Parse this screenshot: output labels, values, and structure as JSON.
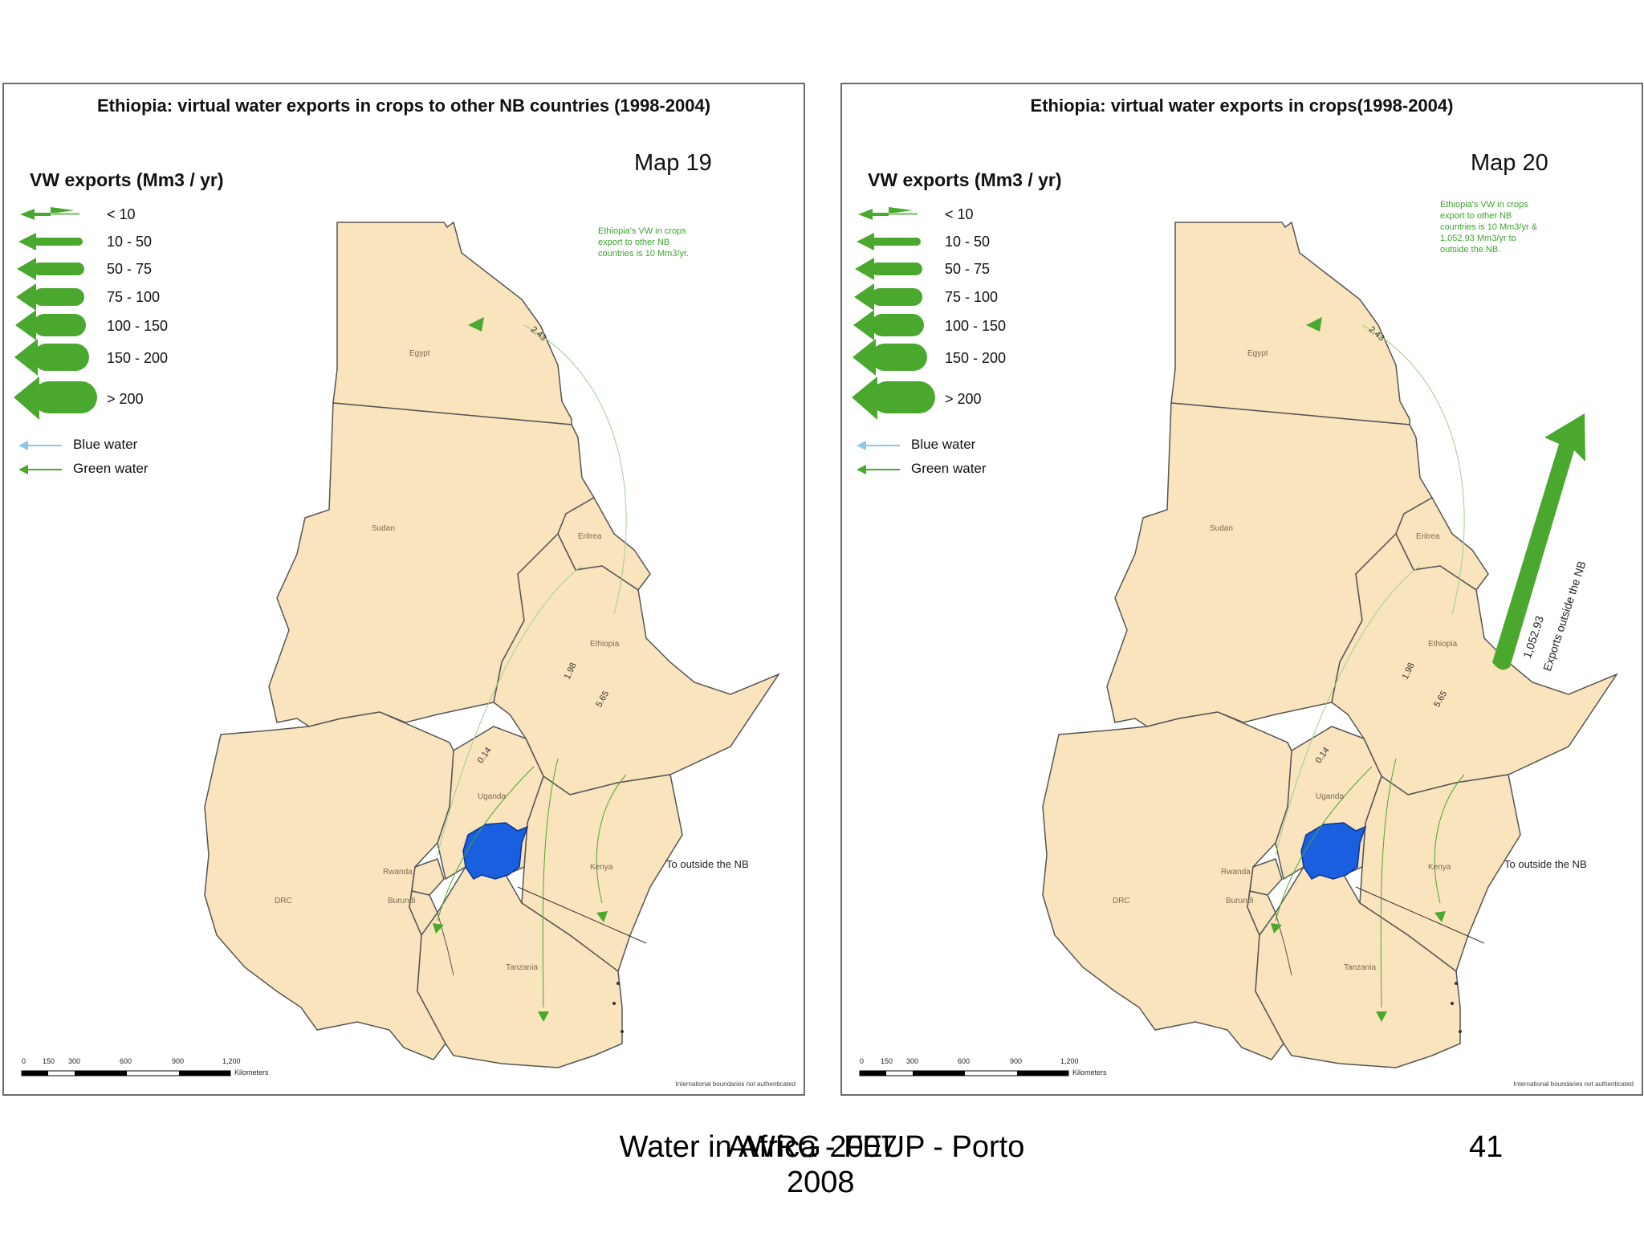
{
  "left_map": {
    "title": "Ethiopia: virtual water exports  in crops to other NB countries (1998-2004)",
    "map_number": "Map 19",
    "legend_title": "VW exports (Mm3 / yr)",
    "legend_classes": [
      "< 10",
      "10 - 50",
      "50 - 75",
      "75 - 100",
      "100 - 150",
      "150 - 200",
      "> 200"
    ],
    "blue_water_label": "Blue water",
    "green_water_label": "Green water",
    "note": "Ethiopia's VW in crops\nexport to other NB\ncountries is 10 Mm3/yr.",
    "flow_values": [
      "2.43",
      "1.98",
      "5.65",
      "0.14"
    ],
    "outside_label": "To outside the NB",
    "countries": {
      "egypt": "Egypt",
      "sudan": "Sudan",
      "eritrea": "Eritrea",
      "ethiopia": "Ethiopia",
      "uganda": "Uganda",
      "kenya": "Kenya",
      "rwanda": "Rwanda",
      "burundi": "Burundi",
      "drc": "DRC",
      "tanzania": "Tanzania"
    },
    "scale_ticks": [
      "0",
      "150",
      "300",
      "600",
      "900",
      "1,200"
    ],
    "scale_unit": "Kilometers",
    "boundary_note": "International boundaries not authenticated"
  },
  "right_map": {
    "title": "Ethiopia: virtual water exports in crops(1998-2004)",
    "map_number": "Map 20",
    "legend_title": "VW exports (Mm3 / yr)",
    "legend_classes": [
      "< 10",
      "10 - 50",
      "50 - 75",
      "75 - 100",
      "100 - 150",
      "150 - 200",
      "> 200"
    ],
    "blue_water_label": "Blue water",
    "green_water_label": "Green water",
    "note": "Ethiopia's VW in crops\nexport to other NB\ncountries is 10 Mm3/yr &\n1,052.93 Mm3/yr to\noutside the NB.",
    "flow_values": [
      "2.43",
      "1.98",
      "5.65",
      "0.14"
    ],
    "outside_label": "To outside the NB",
    "export_value": "1,052.93",
    "export_label": "Exports outside the NB",
    "countries": {
      "egypt": "Egypt",
      "sudan": "Sudan",
      "eritrea": "Eritrea",
      "ethiopia": "Ethiopia",
      "uganda": "Uganda",
      "kenya": "Kenya",
      "rwanda": "Rwanda",
      "burundi": "Burundi",
      "drc": "DRC",
      "tanzania": "Tanzania"
    },
    "scale_ticks": [
      "0",
      "150",
      "300",
      "600",
      "900",
      "1,200"
    ],
    "scale_unit": "Kilometers",
    "boundary_note": "International boundaries not authenticated"
  },
  "footer": {
    "center_text": "Water in Africa - FEUP - Porto",
    "overlay_text": "AWRG 2007",
    "year": "2008",
    "page_number": "41"
  },
  "colors": {
    "land": "#f9e4bd",
    "border": "#555555",
    "lake": "#1a5fe0",
    "green_arrow": "#4aa82e",
    "blue_arrow": "#8cc8ee"
  }
}
